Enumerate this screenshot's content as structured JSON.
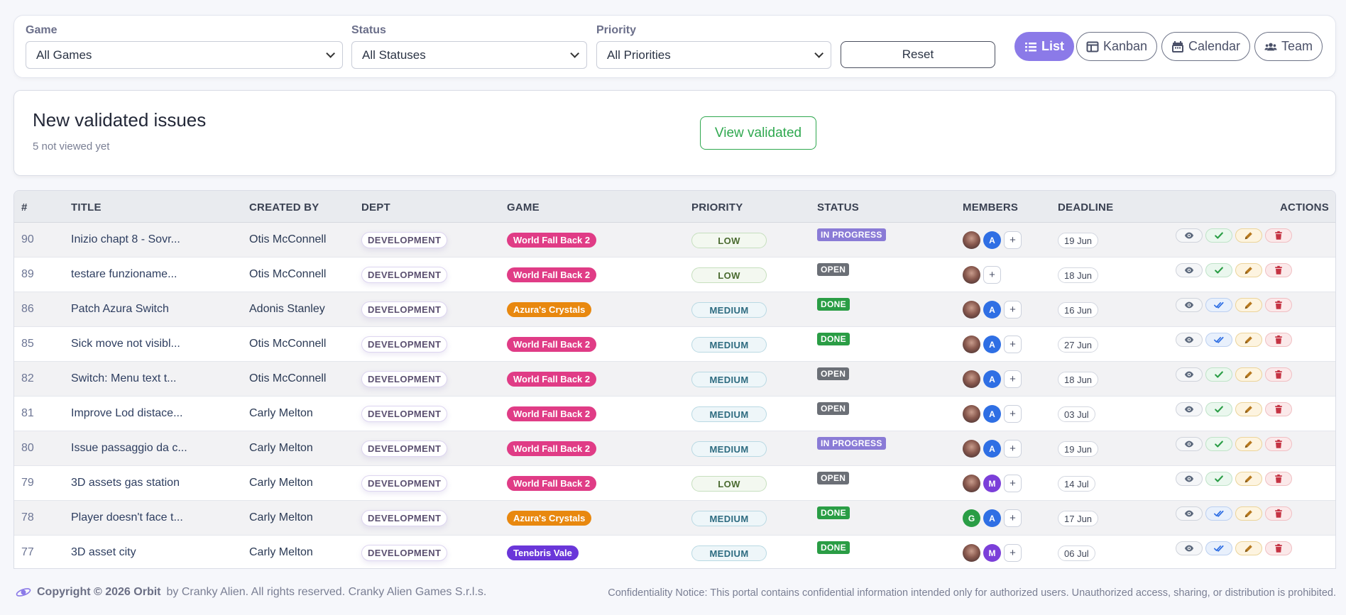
{
  "filters": {
    "game": {
      "label": "Game",
      "value": "All Games"
    },
    "status": {
      "label": "Status",
      "value": "All Statuses"
    },
    "priority": {
      "label": "Priority",
      "value": "All Priorities"
    },
    "reset_label": "Reset"
  },
  "views": [
    {
      "label": "List",
      "icon": "list-icon",
      "active": true
    },
    {
      "label": "Kanban",
      "icon": "kanban-icon",
      "active": false
    },
    {
      "label": "Calendar",
      "icon": "calendar-icon",
      "active": false
    },
    {
      "label": "Team",
      "icon": "team-icon",
      "active": false
    }
  ],
  "validated": {
    "title": "New validated issues",
    "subtitle": "5 not viewed yet",
    "button_label": "View validated"
  },
  "table": {
    "headers": {
      "num": "#",
      "title": "TITLE",
      "created_by": "CREATED BY",
      "dept": "DEPT",
      "game": "GAME",
      "priority": "PRIORITY",
      "status": "STATUS",
      "members": "MEMBERS",
      "deadline": "DEADLINE",
      "actions": "ACTIONS"
    },
    "rows": [
      {
        "num": "90",
        "title": "Inizio chapt 8 - Sovr...",
        "created_by": "Otis McConnell",
        "dept": "DEVELOPMENT",
        "game": "World Fall Back 2",
        "priority": "LOW",
        "status": "IN PROGRESS",
        "members": [
          "photo",
          "A"
        ],
        "deadline": "19 Jun",
        "approve": "check"
      },
      {
        "num": "89",
        "title": "testare funzioname...",
        "created_by": "Otis McConnell",
        "dept": "DEVELOPMENT",
        "game": "World Fall Back 2",
        "priority": "LOW",
        "status": "OPEN",
        "members": [
          "photo"
        ],
        "deadline": "18 Jun",
        "approve": "check"
      },
      {
        "num": "86",
        "title": "Patch Azura Switch",
        "created_by": "Adonis Stanley",
        "dept": "DEVELOPMENT",
        "game": "Azura's Crystals",
        "priority": "MEDIUM",
        "status": "DONE",
        "members": [
          "photo",
          "A"
        ],
        "deadline": "16 Jun",
        "approve": "double-check"
      },
      {
        "num": "85",
        "title": "Sick move not visibl...",
        "created_by": "Otis McConnell",
        "dept": "DEVELOPMENT",
        "game": "World Fall Back 2",
        "priority": "MEDIUM",
        "status": "DONE",
        "members": [
          "photo",
          "A"
        ],
        "deadline": "27 Jun",
        "approve": "double-check"
      },
      {
        "num": "82",
        "title": "Switch: Menu text t...",
        "created_by": "Otis McConnell",
        "dept": "DEVELOPMENT",
        "game": "World Fall Back 2",
        "priority": "MEDIUM",
        "status": "OPEN",
        "members": [
          "photo",
          "A"
        ],
        "deadline": "18 Jun",
        "approve": "check"
      },
      {
        "num": "81",
        "title": "Improve Lod distace...",
        "created_by": "Carly Melton",
        "dept": "DEVELOPMENT",
        "game": "World Fall Back 2",
        "priority": "MEDIUM",
        "status": "OPEN",
        "members": [
          "photo",
          "A"
        ],
        "deadline": "03 Jul",
        "approve": "check"
      },
      {
        "num": "80",
        "title": "Issue passaggio da c...",
        "created_by": "Carly Melton",
        "dept": "DEVELOPMENT",
        "game": "World Fall Back 2",
        "priority": "MEDIUM",
        "status": "IN PROGRESS",
        "members": [
          "photo",
          "A"
        ],
        "deadline": "19 Jun",
        "approve": "check"
      },
      {
        "num": "79",
        "title": "3D assets gas station",
        "created_by": "Carly Melton",
        "dept": "DEVELOPMENT",
        "game": "World Fall Back 2",
        "priority": "LOW",
        "status": "OPEN",
        "members": [
          "photo",
          "M"
        ],
        "deadline": "14 Jul",
        "approve": "check"
      },
      {
        "num": "78",
        "title": "Player doesn't face t...",
        "created_by": "Carly Melton",
        "dept": "DEVELOPMENT",
        "game": "Azura's Crystals",
        "priority": "MEDIUM",
        "status": "DONE",
        "members": [
          "G",
          "A"
        ],
        "deadline": "17 Jun",
        "approve": "double-check"
      },
      {
        "num": "77",
        "title": "3D asset city",
        "created_by": "Carly Melton",
        "dept": "DEVELOPMENT",
        "game": "Tenebris Vale",
        "priority": "MEDIUM",
        "status": "DONE",
        "members": [
          "photo",
          "M"
        ],
        "deadline": "06 Jul",
        "approve": "double-check"
      }
    ]
  },
  "colors": {
    "accent": "#8b7ae8",
    "game_world_fall_back_2": "#e03c86",
    "game_azuras_crystals": "#e8880f",
    "game_tenebris_vale": "#6a36d9",
    "status_in_progress": "#8a7bd6",
    "status_open": "#6b6f76",
    "status_done": "#2a9d45",
    "member_A": "#2f6fe4",
    "member_M": "#7b3fd9",
    "member_G": "#2a9d45"
  },
  "footer": {
    "copyright": "Copyright © 2026 Orbit",
    "rest": "by Cranky Alien. All rights reserved. Cranky Alien Games S.r.l.s.",
    "notice": "Confidentiality Notice: This portal contains confidential information intended only for authorized users. Unauthorized access, sharing, or distribution is prohibited."
  }
}
